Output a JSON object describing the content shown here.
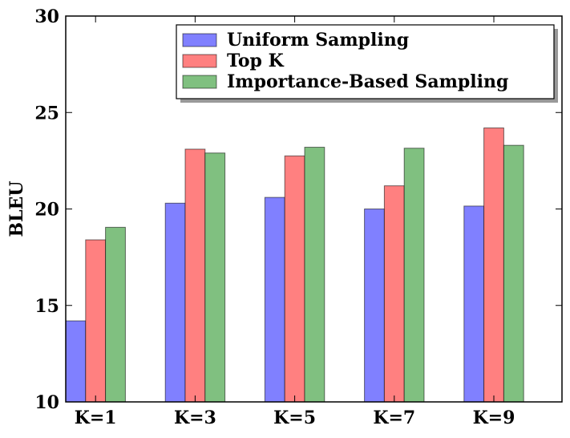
{
  "chart_data": {
    "type": "bar",
    "title": "",
    "xlabel": "",
    "ylabel": "BLEU",
    "ylim": [
      10,
      30
    ],
    "yticks": [
      10,
      15,
      20,
      25,
      30
    ],
    "categories": [
      "K=1",
      "K=3",
      "K=5",
      "K=7",
      "K=9"
    ],
    "grid": false,
    "legend_position": "top-right",
    "series": [
      {
        "name": "Uniform Sampling",
        "color": "#8080ff",
        "values": [
          14.2,
          20.3,
          20.6,
          20.0,
          20.15
        ]
      },
      {
        "name": "Top K",
        "color": "#ff8080",
        "values": [
          18.4,
          23.1,
          22.75,
          21.2,
          24.2
        ]
      },
      {
        "name": "Importance-Based Sampling",
        "color": "#80c080",
        "values": [
          19.05,
          22.9,
          23.2,
          23.15,
          23.3
        ]
      }
    ]
  }
}
